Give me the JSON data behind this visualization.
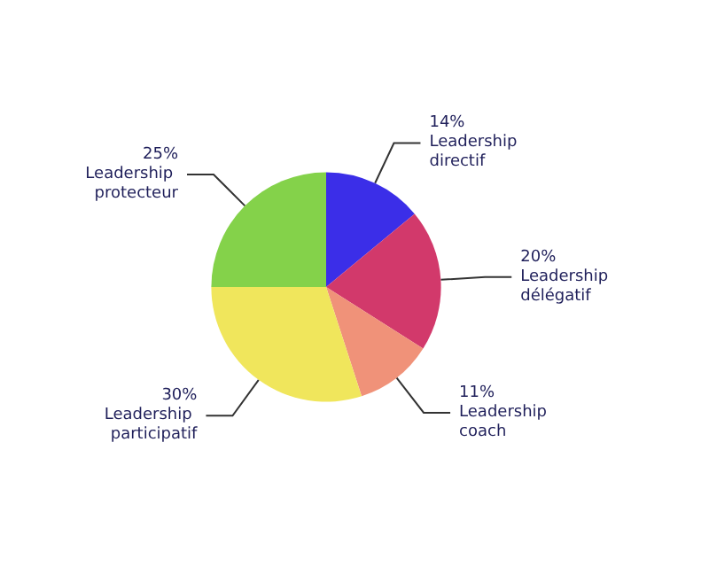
{
  "chart_data": {
    "type": "pie",
    "categories": [
      "Leadership directif",
      "Leadership délégatif",
      "Leadership coach",
      "Leadership participatif",
      "Leadership protecteur"
    ],
    "values": [
      14,
      20,
      11,
      30,
      25
    ],
    "value_labels": [
      "14%",
      "20%",
      "11%",
      "30%",
      "25%"
    ],
    "colors": [
      "#3b2ee8",
      "#d2396b",
      "#f09279",
      "#f0e65c",
      "#84d24a"
    ]
  }
}
